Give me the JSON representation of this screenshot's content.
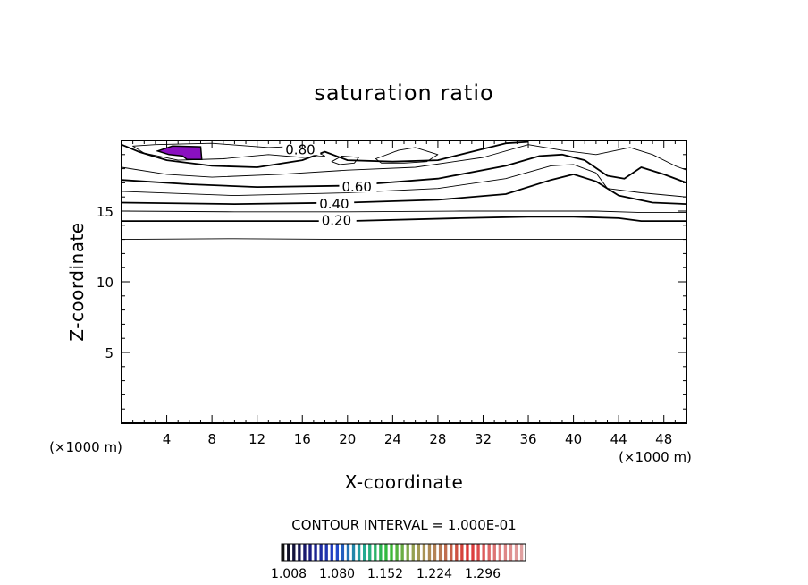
{
  "chart_data": {
    "type": "contour",
    "title": "saturation ratio",
    "xlabel": "X-coordinate",
    "ylabel": "Z-coordinate",
    "x_unit_left": "(×1000 m)",
    "x_unit_right": "(×1000 m)",
    "xlim": [
      0,
      50
    ],
    "ylim": [
      0,
      20
    ],
    "x_ticks": [
      4,
      8,
      12,
      16,
      20,
      24,
      28,
      32,
      36,
      40,
      44,
      48
    ],
    "y_ticks": [
      5,
      10,
      15
    ],
    "contour_interval_text": "CONTOUR INTERVAL = 1.000E-01",
    "contours": [
      {
        "level": 0.1,
        "label": "",
        "points": [
          [
            0,
            13.0
          ],
          [
            10,
            13.05
          ],
          [
            20,
            13.0
          ],
          [
            50,
            13.0
          ]
        ]
      },
      {
        "level": 0.2,
        "label": "0.20",
        "label_at": [
          17.7,
          14.35
        ],
        "points": [
          [
            0,
            14.3
          ],
          [
            10,
            14.3
          ],
          [
            20,
            14.3
          ],
          [
            30,
            14.5
          ],
          [
            36,
            14.6
          ],
          [
            40,
            14.6
          ],
          [
            44,
            14.5
          ],
          [
            46,
            14.3
          ],
          [
            50,
            14.3
          ]
        ]
      },
      {
        "level": 0.3,
        "label": "",
        "points": [
          [
            0,
            15.0
          ],
          [
            10,
            14.95
          ],
          [
            20,
            14.95
          ],
          [
            30,
            15.0
          ],
          [
            36,
            15.0
          ],
          [
            42,
            15.0
          ],
          [
            46,
            14.9
          ],
          [
            50,
            14.9
          ]
        ]
      },
      {
        "level": 0.4,
        "label": "0.40",
        "label_at": [
          17.5,
          15.5
        ],
        "points": [
          [
            0,
            15.6
          ],
          [
            10,
            15.5
          ],
          [
            20,
            15.6
          ],
          [
            28,
            15.8
          ],
          [
            34,
            16.2
          ],
          [
            38,
            17.2
          ],
          [
            40,
            17.6
          ],
          [
            42,
            17.1
          ],
          [
            44,
            16.1
          ],
          [
            47,
            15.6
          ],
          [
            50,
            15.5
          ]
        ]
      },
      {
        "level": 0.5,
        "label": "",
        "points": [
          [
            0,
            16.4
          ],
          [
            10,
            16.1
          ],
          [
            20,
            16.3
          ],
          [
            28,
            16.6
          ],
          [
            34,
            17.3
          ],
          [
            38,
            18.2
          ],
          [
            40,
            18.3
          ],
          [
            42,
            17.7
          ],
          [
            43,
            16.6
          ],
          [
            46,
            16.3
          ],
          [
            50,
            16.0
          ]
        ]
      },
      {
        "level": 0.6,
        "label": "0.60",
        "label_at": [
          19.5,
          16.7
        ],
        "points": [
          [
            0,
            17.2
          ],
          [
            6,
            16.9
          ],
          [
            12,
            16.7
          ],
          [
            20,
            16.8
          ],
          [
            28,
            17.3
          ],
          [
            34,
            18.2
          ],
          [
            37,
            18.9
          ],
          [
            39,
            19.0
          ],
          [
            41,
            18.6
          ],
          [
            43,
            17.5
          ],
          [
            44.5,
            17.3
          ],
          [
            46,
            18.1
          ],
          [
            48,
            17.6
          ],
          [
            50,
            17.0
          ]
        ]
      },
      {
        "level": 0.7,
        "label": "",
        "points": [
          [
            0,
            18.1
          ],
          [
            4,
            17.6
          ],
          [
            8,
            17.4
          ],
          [
            14,
            17.6
          ],
          [
            20,
            17.9
          ],
          [
            26,
            18.1
          ],
          [
            32,
            18.8
          ],
          [
            36,
            19.7
          ],
          [
            39,
            19.3
          ],
          [
            42,
            19.0
          ],
          [
            45,
            19.5
          ],
          [
            47,
            19.0
          ],
          [
            49,
            18.2
          ],
          [
            50,
            17.9
          ]
        ]
      },
      {
        "level": 0.8,
        "label": "0.80",
        "label_at": [
          14.5,
          19.35
        ],
        "points": [
          [
            0,
            19.7
          ],
          [
            1.5,
            19.2
          ],
          [
            4,
            18.6
          ],
          [
            8,
            18.2
          ],
          [
            12,
            18.1
          ],
          [
            16,
            18.6
          ],
          [
            18,
            19.2
          ],
          [
            20,
            18.6
          ],
          [
            24,
            18.5
          ],
          [
            28,
            18.6
          ],
          [
            32,
            19.4
          ],
          [
            34,
            19.8
          ],
          [
            36,
            19.9
          ]
        ]
      }
    ],
    "colorbar": {
      "labels": [
        "1.008",
        "1.080",
        "1.152",
        "1.224",
        "1.296"
      ],
      "colors": [
        "#101010",
        "#1a1a80",
        "#2244cc",
        "#22aa99",
        "#33bb33",
        "#a0a055",
        "#bb7755",
        "#dd3333",
        "#dd7777",
        "#e0a0a0"
      ]
    },
    "shaded_region": {
      "color": "#8a10c0",
      "range": [
        1.008,
        1.296
      ],
      "points": [
        [
          3.2,
          19.25
        ],
        [
          4.5,
          19.6
        ],
        [
          7.0,
          19.55
        ],
        [
          7.1,
          18.65
        ],
        [
          5.8,
          18.65
        ],
        [
          5.4,
          18.9
        ],
        [
          4.2,
          19.0
        ],
        [
          3.2,
          19.25
        ]
      ]
    },
    "extra_closed_contours": [
      {
        "level": 0.9,
        "points": [
          [
            3.0,
            19.7
          ],
          [
            8,
            19.8
          ],
          [
            13,
            19.5
          ],
          [
            16,
            19.6
          ],
          [
            17,
            19.3
          ],
          [
            18,
            18.9
          ],
          [
            16,
            18.8
          ],
          [
            13,
            19.0
          ],
          [
            9,
            18.7
          ],
          [
            5,
            18.6
          ],
          [
            2,
            19.1
          ],
          [
            1,
            19.6
          ]
        ]
      },
      {
        "level": 0.9,
        "points": [
          [
            22.5,
            18.7
          ],
          [
            24.5,
            19.3
          ],
          [
            26,
            19.5
          ],
          [
            28,
            19.0
          ],
          [
            27,
            18.5
          ],
          [
            25,
            18.4
          ],
          [
            23,
            18.4
          ]
        ]
      },
      {
        "level": 0.9,
        "points": [
          [
            18.6,
            18.5
          ],
          [
            19.5,
            18.9
          ],
          [
            21,
            18.8
          ],
          [
            20.6,
            18.4
          ],
          [
            19.3,
            18.3
          ]
        ]
      }
    ]
  }
}
